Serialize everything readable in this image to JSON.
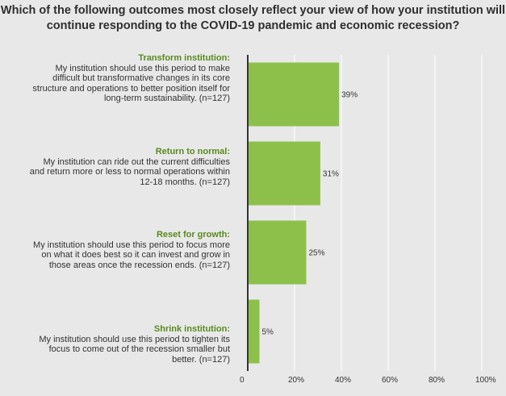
{
  "chart_data": {
    "type": "bar",
    "orientation": "horizontal",
    "title_lines": [
      "Which of the following outcomes most closely reflect your view of how your institution will",
      "continue responding to the COVID-19 pandemic and economic recession?"
    ],
    "categories": [
      {
        "head": "Transform institution:",
        "desc": "My institution should use this period to make difficult but transformative changes in its core structure and operations to better position itself for long-term sustainability. (n=127)"
      },
      {
        "head": "Return to normal:",
        "desc": "My institution can ride out the current difficulties and return more or less to normal operations within 12-18 months. (n=127)"
      },
      {
        "head": "Reset for growth:",
        "desc": "My institution should use this period to focus more on what it does best so it can invest and grow in those areas once the recession ends. (n=127)"
      },
      {
        "head": "Shrink institution:",
        "desc": "My institution should use this period to tighten its focus to come out of the recession smaller but better. (n=127)"
      }
    ],
    "values": [
      39,
      31,
      25,
      5
    ],
    "value_labels": [
      "39%",
      "31%",
      "25%",
      "5%"
    ],
    "xlim": [
      0,
      100
    ],
    "xticks": [
      0,
      20,
      40,
      60,
      80,
      100
    ],
    "xtick_labels": [
      "0",
      "20%",
      "40%",
      "60%",
      "80%",
      "100%"
    ],
    "grid": true,
    "bar_color": "#8dc04b",
    "head_color": "#5a8a1e"
  }
}
